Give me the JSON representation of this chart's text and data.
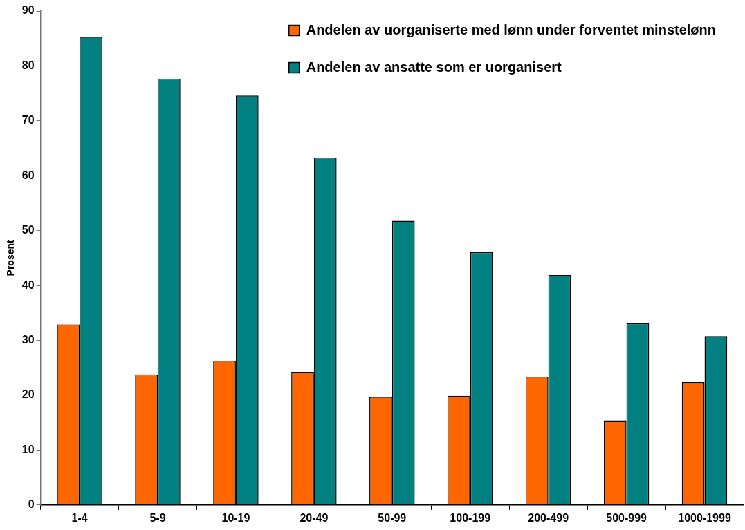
{
  "chart_data": {
    "type": "bar",
    "ylabel": "Prosent",
    "categories": [
      "1-4",
      "5-9",
      "10-19",
      "20-49",
      "50-99",
      "100-199",
      "200-499",
      "500-999",
      "1000-1999"
    ],
    "series": [
      {
        "name": "Andelen av uorganiserte med lønn under forventet minstelønn",
        "color": "#ff6600",
        "values": [
          32.9,
          23.8,
          26.3,
          24.2,
          19.7,
          19.9,
          23.4,
          15.4,
          22.4
        ]
      },
      {
        "name": "Andelen av ansatte som er uorganisert",
        "color": "#008080",
        "values": [
          85.3,
          77.7,
          74.6,
          63.3,
          51.8,
          46.1,
          41.9,
          33.1,
          30.8
        ]
      }
    ],
    "ylim": [
      0,
      90
    ],
    "yticks": [
      0,
      10,
      20,
      30,
      40,
      50,
      60,
      70,
      80,
      90
    ],
    "grid": false,
    "legend": "top right"
  }
}
